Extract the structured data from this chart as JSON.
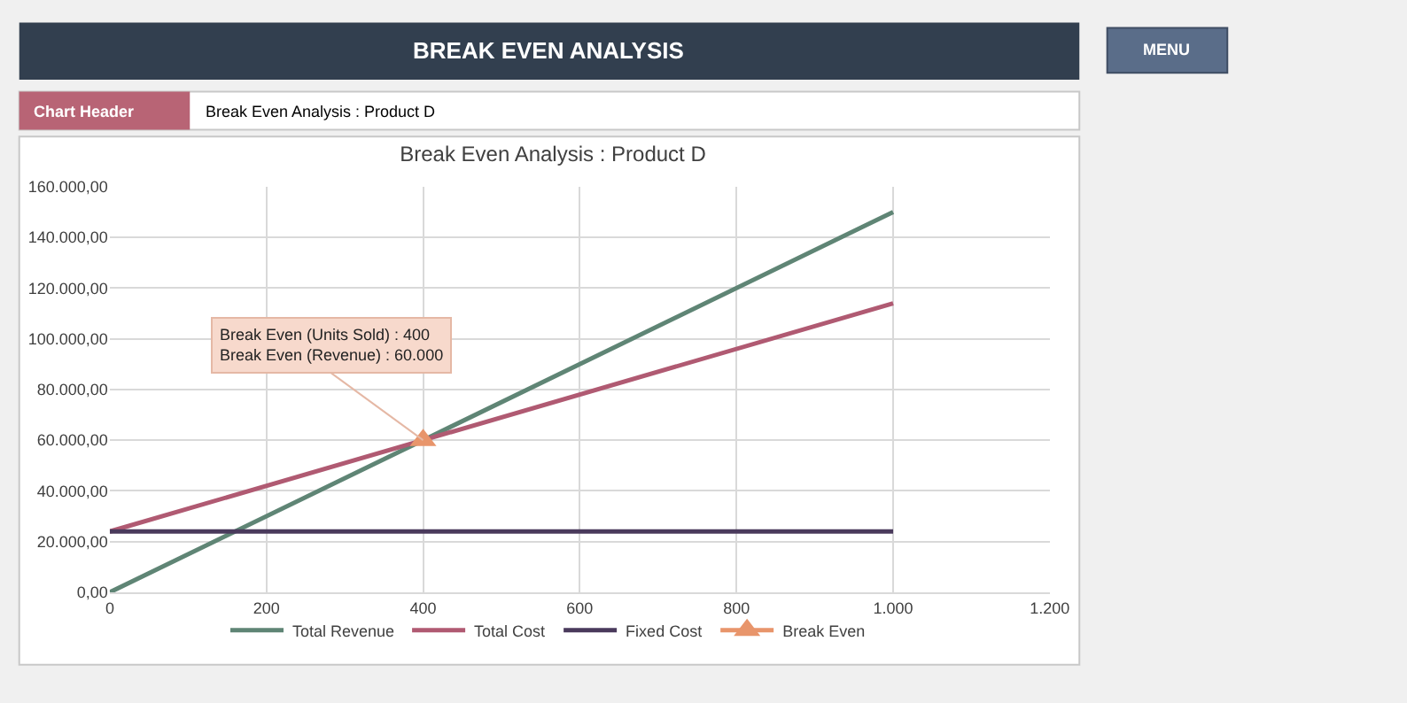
{
  "chart_data": {
    "type": "line",
    "title": "Break Even Analysis : Product D",
    "x": [
      0,
      400,
      1000
    ],
    "series": [
      {
        "name": "Total Revenue",
        "color": "#5f8575",
        "values": [
          0,
          60000,
          150000
        ]
      },
      {
        "name": "Total Cost",
        "color": "#b05a72",
        "values": [
          24000,
          60000,
          114000
        ]
      },
      {
        "name": "Fixed Cost",
        "color": "#4a3a5c",
        "values": [
          24000,
          24000,
          24000
        ]
      },
      {
        "name": "Break Even",
        "color": "#e8956b",
        "x": [
          400
        ],
        "values": [
          60000
        ],
        "marker": "triangle"
      }
    ],
    "xlim": [
      0,
      1200
    ],
    "xticks": [
      0,
      200,
      400,
      600,
      800,
      {
        "value": 1000,
        "label": "1.000"
      },
      {
        "value": 1200,
        "label": "1.200"
      }
    ],
    "ylim": [
      0,
      160000
    ],
    "yticks": [
      {
        "value": 0,
        "label": "0,00"
      },
      {
        "value": 20000,
        "label": "20.000,00"
      },
      {
        "value": 40000,
        "label": "40.000,00"
      },
      {
        "value": 60000,
        "label": "60.000,00"
      },
      {
        "value": 80000,
        "label": "80.000,00"
      },
      {
        "value": 100000,
        "label": "100.000,00"
      },
      {
        "value": 120000,
        "label": "120.000,00"
      },
      {
        "value": 140000,
        "label": "140.000,00"
      },
      {
        "value": 160000,
        "label": "160.000,00"
      }
    ],
    "grid": true,
    "legend": "bottom",
    "marker": "none",
    "line_style": "solid",
    "annotations": [
      "BREAK EVEN ANALYSIS",
      "MENU",
      "Chart Header",
      "Break Even Analysis : Product D",
      {
        "text": "Break Even (Units Sold) : 400\nBreak Even (Revenue) : 60.000",
        "x": 400,
        "y": 60000
      }
    ]
  }
}
